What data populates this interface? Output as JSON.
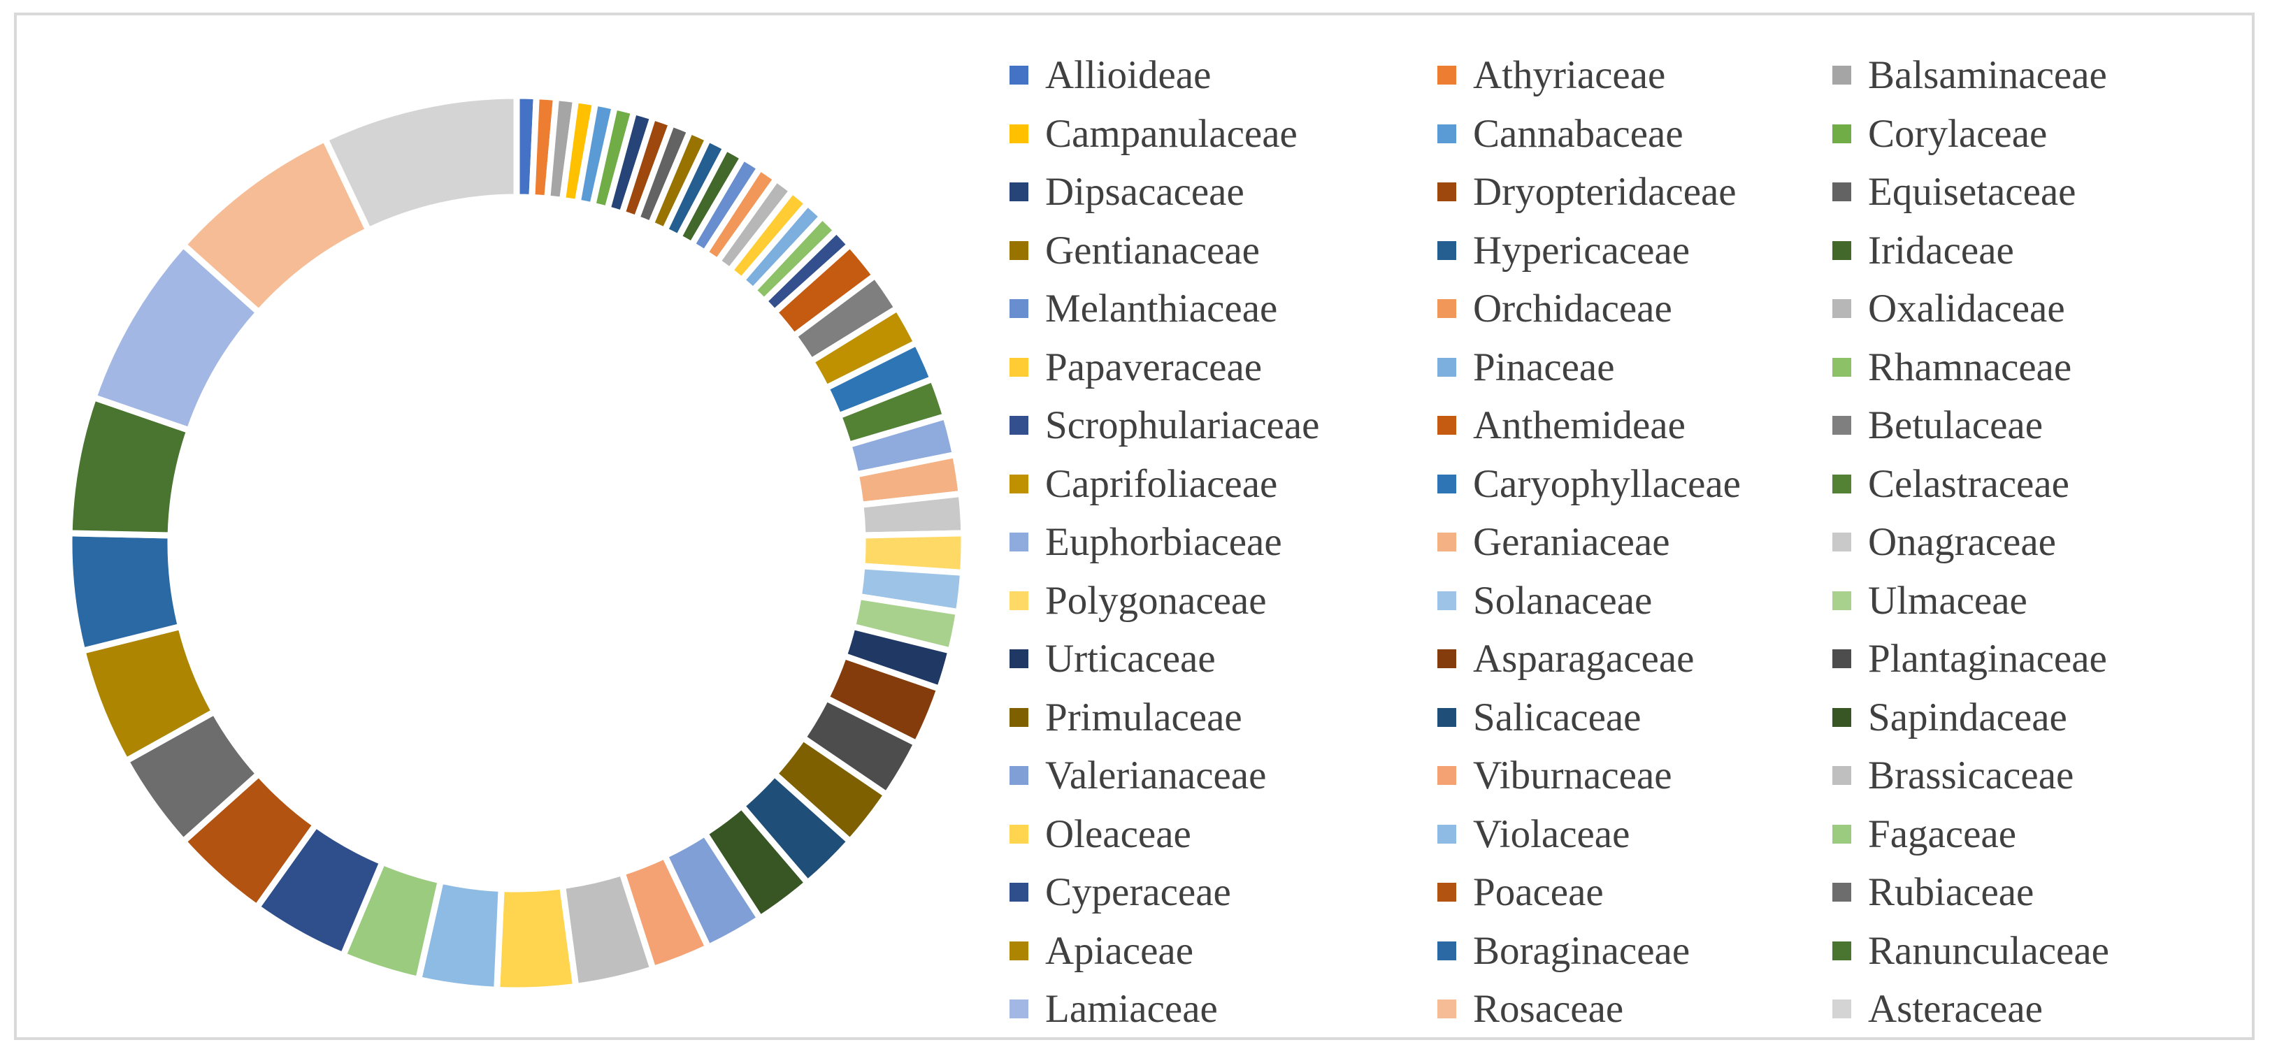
{
  "chart_data": {
    "type": "pie",
    "variant": "doughnut",
    "title": "",
    "legend_position": "right",
    "categories": [
      "Allioideae",
      "Athyriaceae",
      "Balsaminaceae",
      "Campanulaceae",
      "Cannabaceae",
      "Corylaceae",
      "Dipsacaceae",
      "Dryopteridaceae",
      "Equisetaceae",
      "Gentianaceae",
      "Hypericaceae",
      "Iridaceae",
      "Melanthiaceae",
      "Orchidaceae",
      "Oxalidaceae",
      "Papaveraceae",
      "Pinaceae",
      "Rhamnaceae",
      "Scrophulariaceae",
      "Anthemideae",
      "Betulaceae",
      "Caprifoliaceae",
      "Caryophyllaceae",
      "Celastraceae",
      "Euphorbiaceae",
      "Geraniaceae",
      "Onagraceae",
      "Polygonaceae",
      "Solanaceae",
      "Ulmaceae",
      "Urticaceae",
      "Asparagaceae",
      "Plantaginaceae",
      "Primulaceae",
      "Salicaceae",
      "Sapindaceae",
      "Valerianaceae",
      "Viburnaceae",
      "Brassicaceae",
      "Oleaceae",
      "Violaceae",
      "Fagaceae",
      "Cyperaceae",
      "Poaceae",
      "Rubiaceae",
      "Apiaceae",
      "Boraginaceae",
      "Ranunculaceae",
      "Lamiaceae",
      "Rosaceae",
      "Asteraceae"
    ],
    "values": [
      1,
      1,
      1,
      1,
      1,
      1,
      1,
      1,
      1,
      1,
      1,
      1,
      1,
      1,
      1,
      1,
      1,
      1,
      1,
      2,
      2,
      2,
      2,
      2,
      2,
      2,
      2,
      2,
      2,
      2,
      2,
      3,
      3,
      3,
      3,
      3,
      3,
      3,
      4,
      4,
      4,
      4,
      5,
      5,
      5,
      6,
      6,
      7,
      9,
      9,
      10
    ],
    "colors": [
      "#4472C4",
      "#ED7D31",
      "#A5A5A5",
      "#FFC000",
      "#5B9BD5",
      "#70AD47",
      "#264478",
      "#9E480E",
      "#636363",
      "#997300",
      "#255E91",
      "#43682B",
      "#698ED0",
      "#F1975A",
      "#B7B7B7",
      "#FFCD33",
      "#7CAFDD",
      "#8CC168",
      "#334F8D",
      "#C55A11",
      "#7F7F7F",
      "#BF9000",
      "#2E75B6",
      "#548235",
      "#8FAADC",
      "#F4B183",
      "#C9C9C9",
      "#FFD966",
      "#9DC3E6",
      "#A9D18E",
      "#203864",
      "#843C0C",
      "#4D4D4D",
      "#7F6000",
      "#1F4E79",
      "#375623",
      "#7F9FD6",
      "#F4A273",
      "#BFBFBF",
      "#FFD54F",
      "#8DBBE4",
      "#9BCB7E",
      "#2F4E8C",
      "#B35312",
      "#6D6D6D",
      "#AD8500",
      "#2A69A3",
      "#4A7530",
      "#A2B7E3",
      "#F6BC95",
      "#D4D4D4"
    ]
  }
}
